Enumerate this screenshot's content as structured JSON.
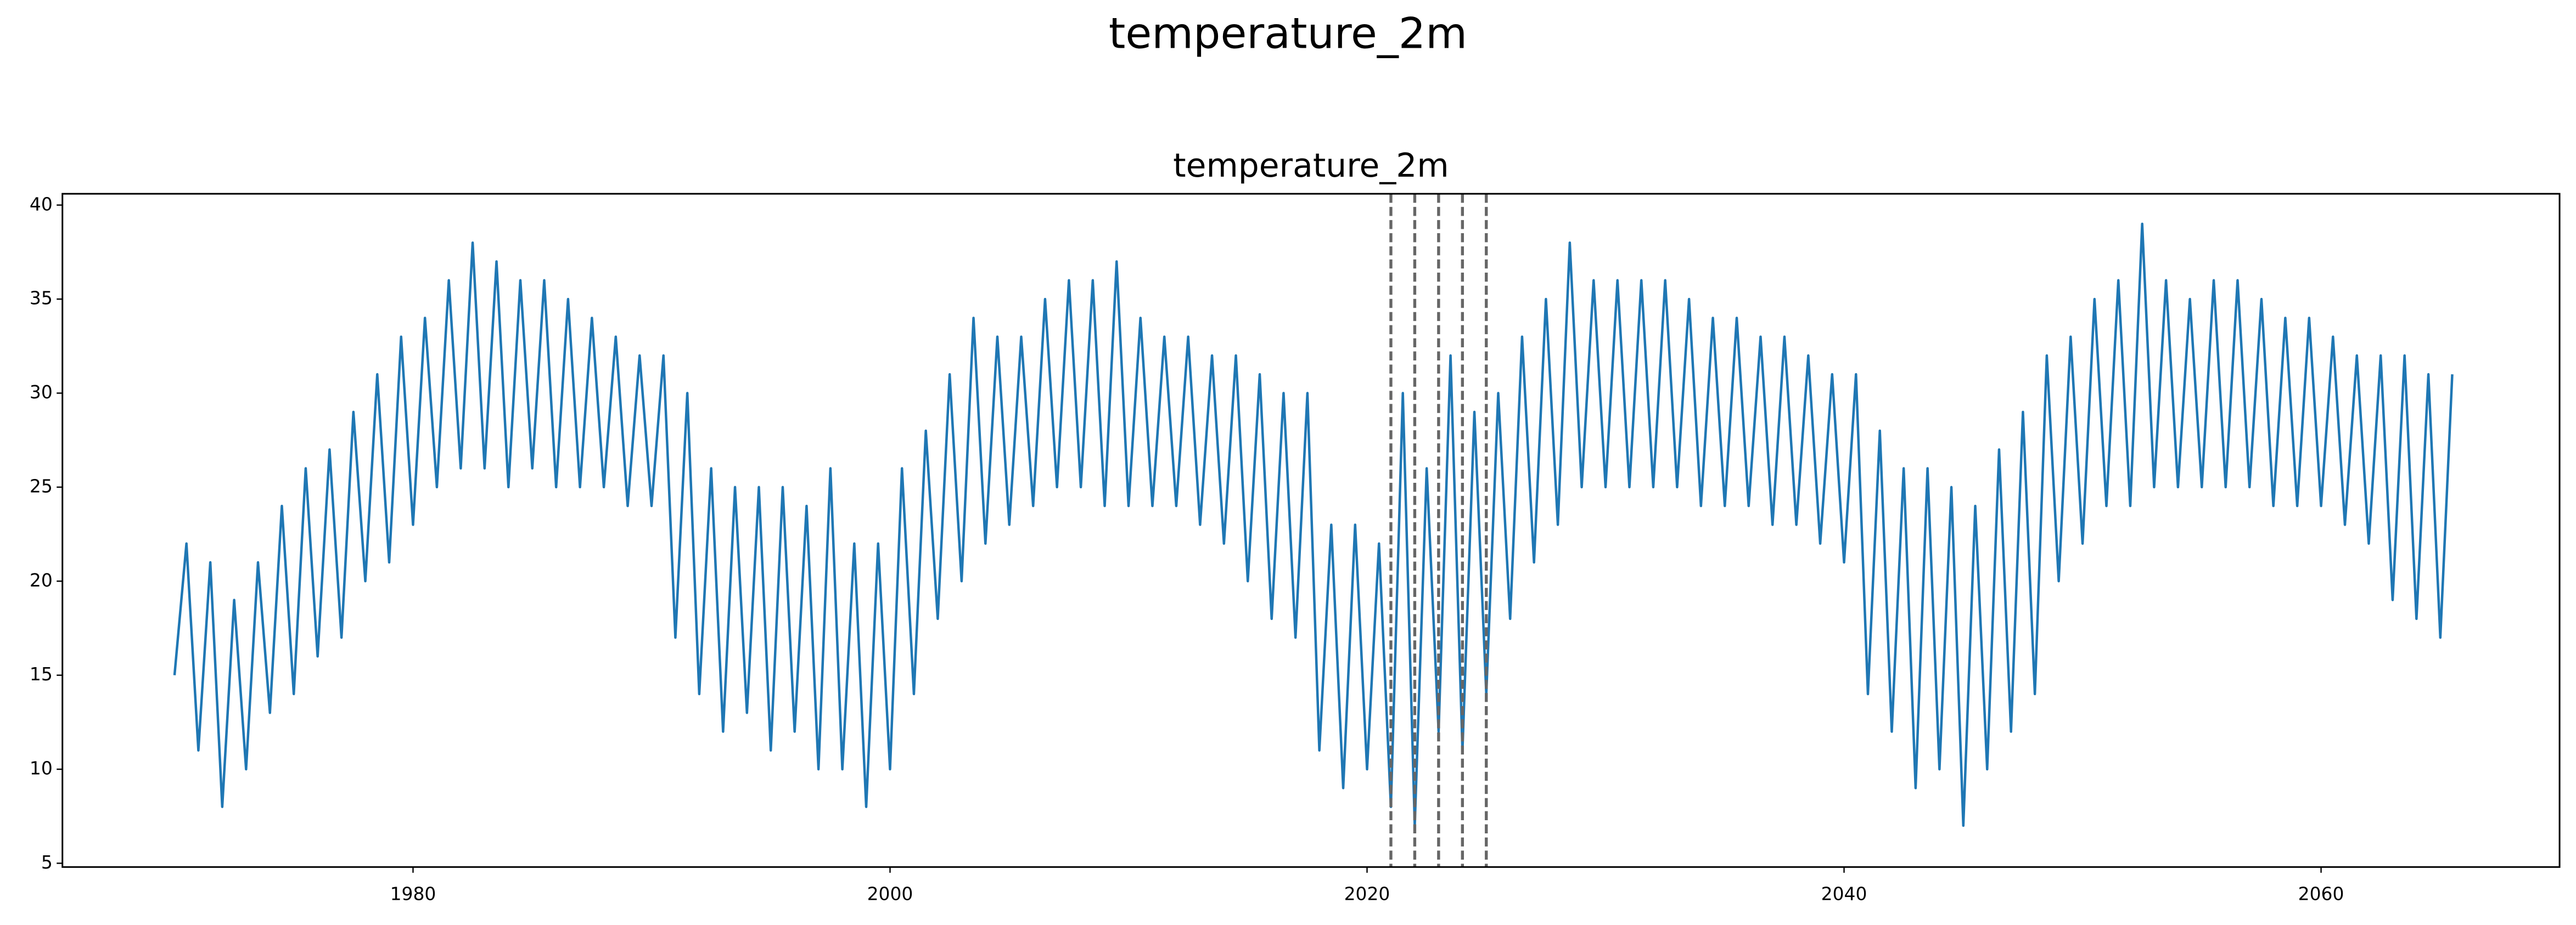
{
  "chart_data": {
    "type": "line",
    "suptitle": "temperature_2m",
    "title": "temperature_2m",
    "color": "#1f77b4",
    "xlim": [
      1965.3,
      2070.0
    ],
    "ylim": [
      4.8,
      40.6
    ],
    "xticks": [
      1980,
      2000,
      2020,
      2040,
      2060
    ],
    "yticks": [
      5,
      10,
      15,
      20,
      25,
      30,
      35,
      40
    ],
    "grid": false,
    "vlines": [
      2021,
      2022,
      2023,
      2024,
      2025
    ],
    "vline_color": "#666666",
    "x": [
      1970,
      1970.5,
      1971,
      1971.5,
      1972,
      1972.5,
      1973,
      1973.5,
      1974,
      1974.5,
      1975,
      1975.5,
      1976,
      1976.5,
      1977,
      1977.5,
      1978,
      1978.5,
      1979,
      1979.5,
      1980,
      1980.5,
      1981,
      1981.5,
      1982,
      1982.5,
      1983,
      1983.5,
      1984,
      1984.5,
      1985,
      1985.5,
      1986,
      1986.5,
      1987,
      1987.5,
      1988,
      1988.5,
      1989,
      1989.5,
      1990,
      1990.5,
      1991,
      1991.5,
      1992,
      1992.5,
      1993,
      1993.5,
      1994,
      1994.5,
      1995,
      1995.5,
      1996,
      1996.5,
      1997,
      1997.5,
      1998,
      1998.5,
      1999,
      1999.5,
      2000,
      2000.5,
      2001,
      2001.5,
      2002,
      2002.5,
      2003,
      2003.5,
      2004,
      2004.5,
      2005,
      2005.5,
      2006,
      2006.5,
      2007,
      2007.5,
      2008,
      2008.5,
      2009,
      2009.5,
      2010,
      2010.5,
      2011,
      2011.5,
      2012,
      2012.5,
      2013,
      2013.5,
      2014,
      2014.5,
      2015,
      2015.5,
      2016,
      2016.5,
      2017,
      2017.5,
      2018,
      2018.5,
      2019,
      2019.5,
      2020,
      2020.5,
      2021,
      2021.5,
      2022,
      2022.5,
      2023,
      2023.5,
      2024,
      2024.5,
      2025,
      2025.5,
      2026,
      2026.5,
      2027,
      2027.5,
      2028,
      2028.5,
      2029,
      2029.5,
      2030,
      2030.5,
      2031,
      2031.5,
      2032,
      2032.5,
      2033,
      2033.5,
      2034,
      2034.5,
      2035,
      2035.5,
      2036,
      2036.5,
      2037,
      2037.5,
      2038,
      2038.5,
      2039,
      2039.5,
      2040,
      2040.5,
      2041,
      2041.5,
      2042,
      2042.5,
      2043,
      2043.5,
      2044,
      2044.5,
      2045,
      2045.5,
      2046,
      2046.5,
      2047,
      2047.5,
      2048,
      2048.5,
      2049,
      2049.5,
      2050,
      2050.5,
      2051,
      2051.5,
      2052,
      2052.5,
      2053,
      2053.5,
      2054,
      2054.5,
      2055,
      2055.5,
      2056,
      2056.5,
      2057,
      2057.5,
      2058,
      2058.5,
      2059,
      2059.5,
      2060,
      2060.5,
      2061,
      2061.5,
      2062,
      2062.5,
      2063,
      2063.5,
      2064,
      2064.5,
      2065,
      2065.5
    ],
    "values": [
      15,
      22,
      11,
      21,
      8,
      19,
      10,
      21,
      13,
      24,
      14,
      26,
      16,
      27,
      17,
      29,
      20,
      31,
      21,
      33,
      23,
      34,
      25,
      36,
      26,
      38,
      26,
      37,
      25,
      36,
      26,
      36,
      25,
      35,
      25,
      34,
      25,
      33,
      24,
      32,
      24,
      32,
      17,
      30,
      14,
      26,
      12,
      25,
      13,
      25,
      11,
      25,
      12,
      24,
      10,
      26,
      10,
      22,
      8,
      22,
      10,
      26,
      14,
      28,
      18,
      31,
      20,
      34,
      22,
      33,
      23,
      33,
      24,
      35,
      25,
      36,
      25,
      36,
      24,
      37,
      24,
      34,
      24,
      33,
      24,
      33,
      23,
      32,
      22,
      32,
      20,
      31,
      18,
      30,
      17,
      30,
      11,
      23,
      9,
      23,
      10,
      22,
      8,
      30,
      7,
      26,
      12,
      32,
      11,
      29,
      14,
      30,
      18,
      33,
      21,
      35,
      23,
      38,
      25,
      36,
      25,
      36,
      25,
      36,
      25,
      36,
      25,
      35,
      24,
      34,
      24,
      34,
      24,
      33,
      23,
      33,
      23,
      32,
      22,
      31,
      21,
      31,
      14,
      28,
      12,
      26,
      9,
      26,
      10,
      25,
      7,
      24,
      10,
      27,
      12,
      29,
      14,
      32,
      20,
      33,
      22,
      35,
      24,
      36,
      24,
      39,
      25,
      36,
      25,
      35,
      25,
      36,
      25,
      36,
      25,
      35,
      24,
      34,
      24,
      34,
      24,
      33,
      23,
      32,
      22,
      32,
      19,
      32,
      18,
      31,
      17,
      31
    ]
  }
}
